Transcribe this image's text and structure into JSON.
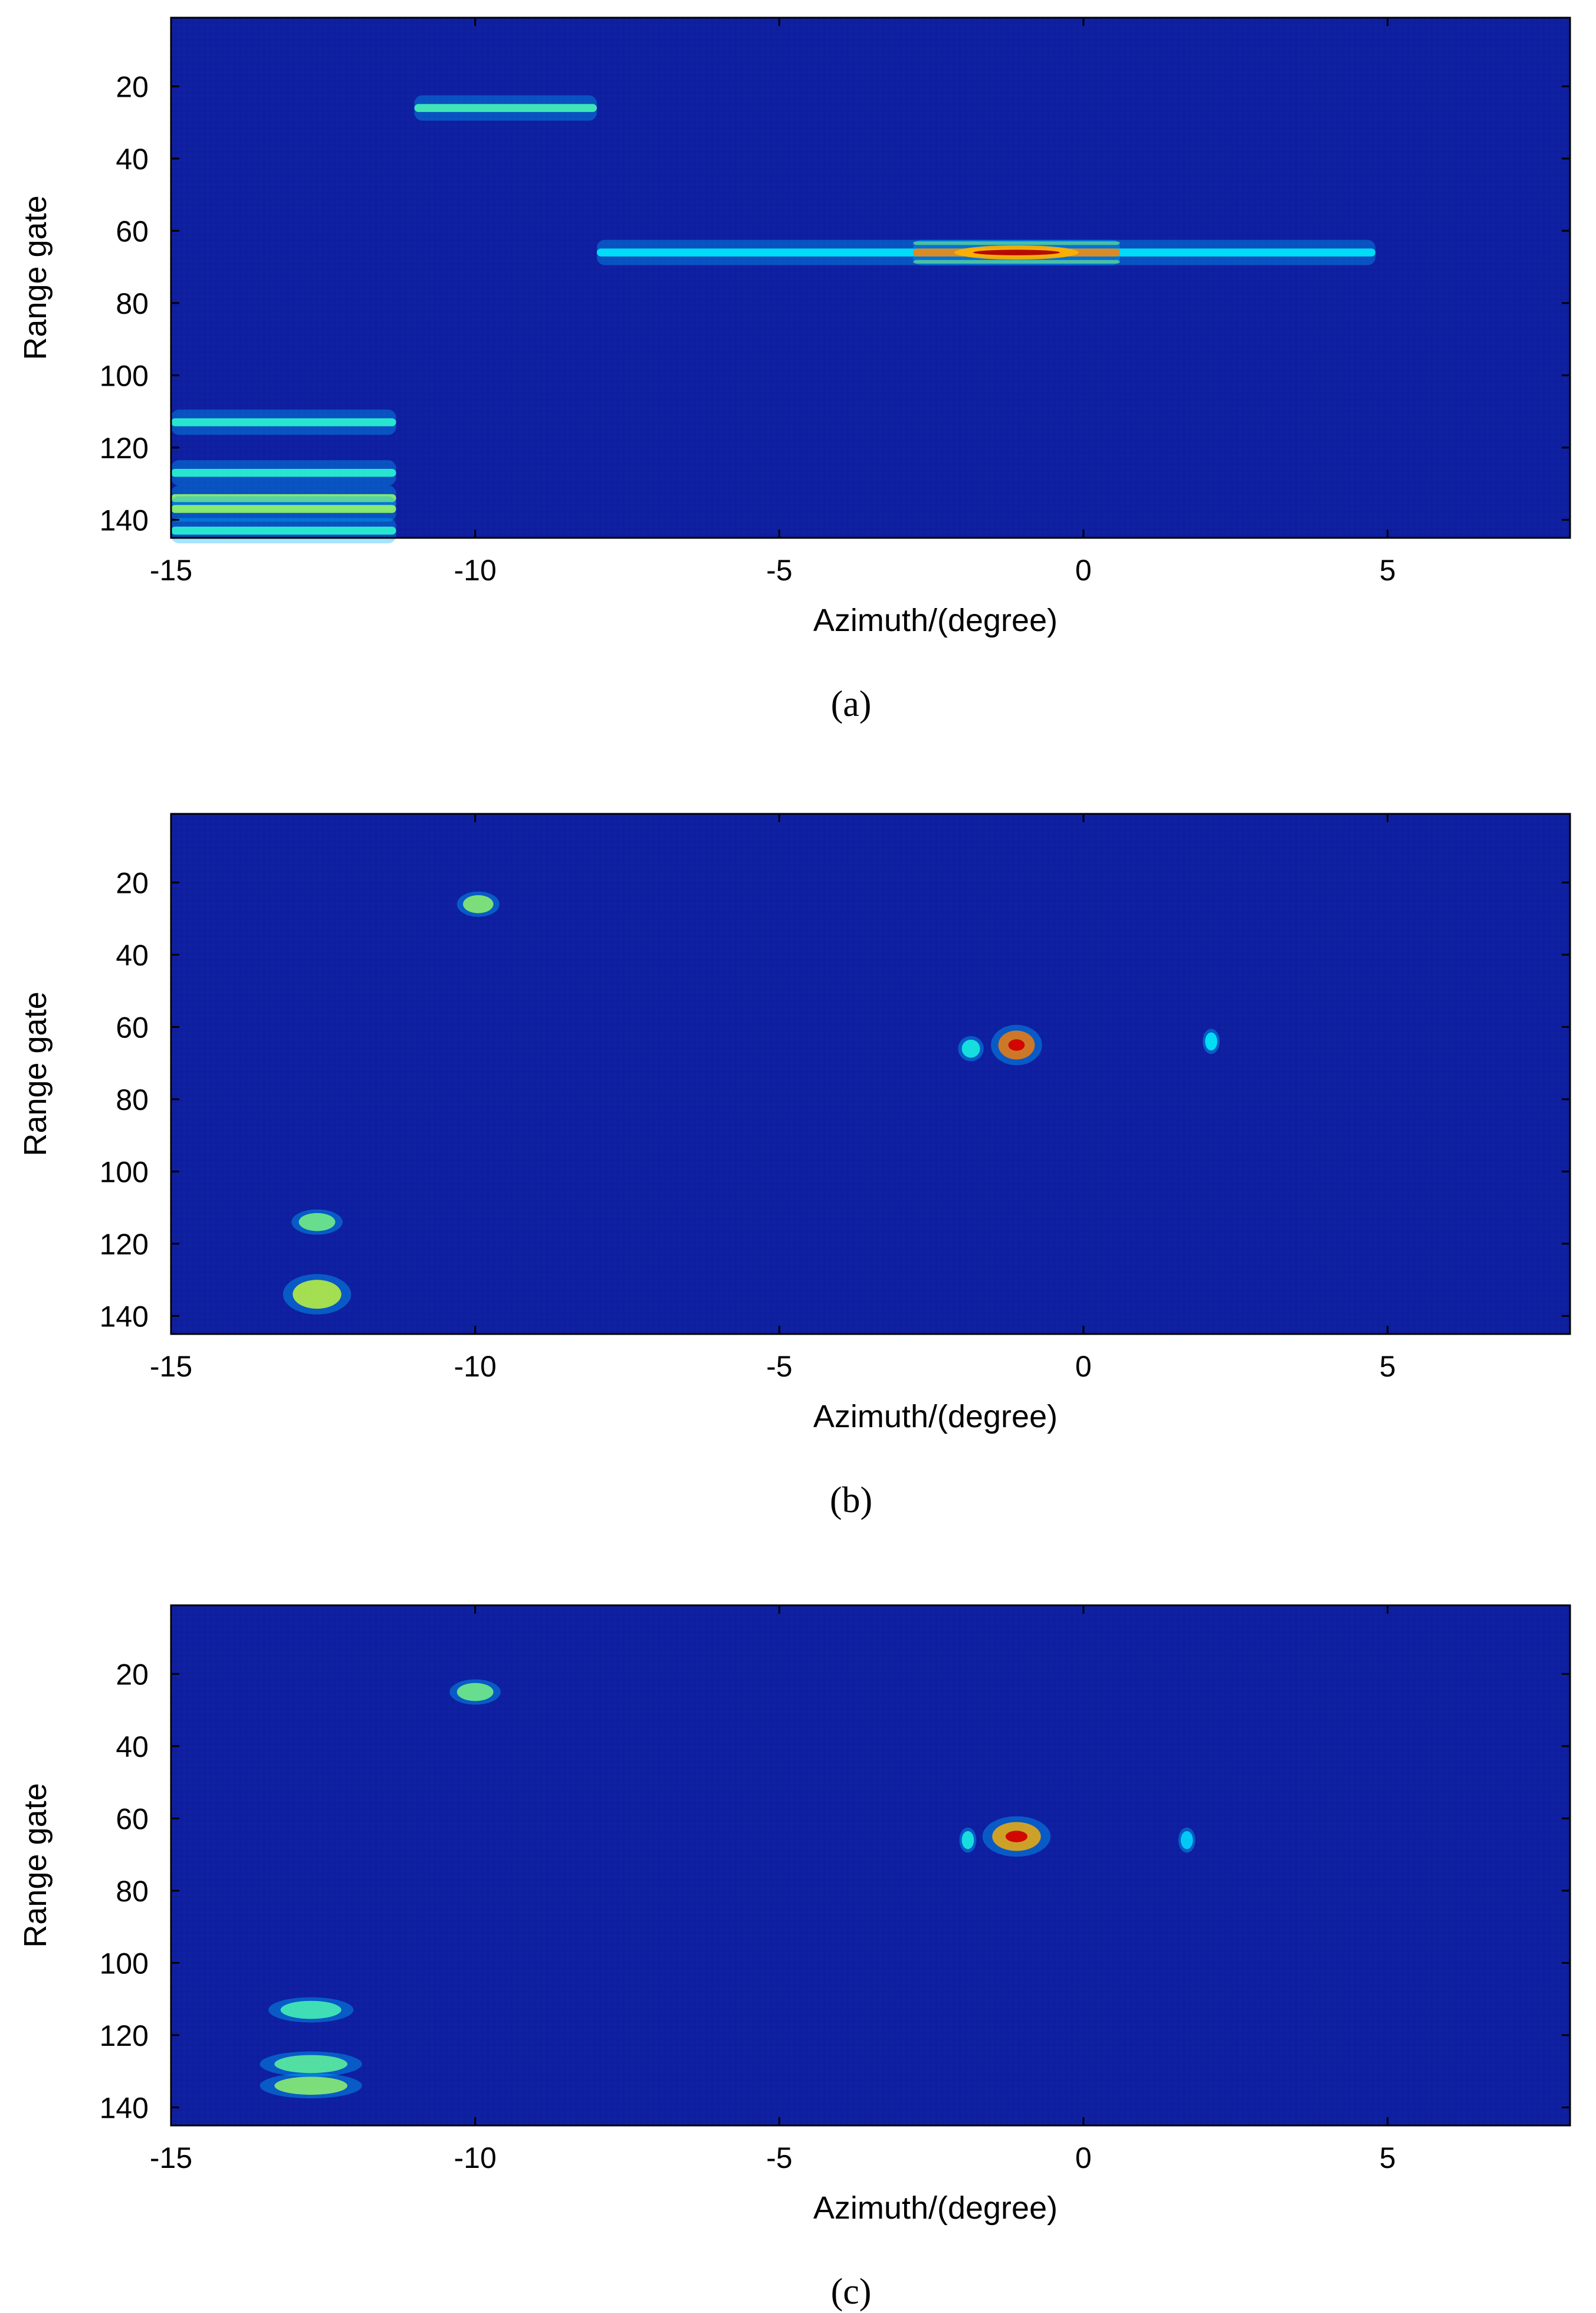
{
  "chart_data": [
    {
      "type": "heatmap",
      "caption": "(a)",
      "xlabel": "Azimuth/(degree)",
      "ylabel": "Range gate",
      "xlim": [
        -15,
        8
      ],
      "ylim": [
        145,
        1
      ],
      "xticks": [
        -15,
        -10,
        -5,
        0,
        5
      ],
      "yticks": [
        20,
        40,
        60,
        80,
        100,
        120,
        140
      ],
      "colormap": "jet",
      "background_color": "#0e1fa0",
      "features": [
        {
          "az_min": -11.0,
          "az_max": -8.0,
          "range_gate": 26,
          "intensity": 0.45,
          "kind": "streak"
        },
        {
          "az_min": -8.0,
          "az_max": 4.8,
          "range_gate": 66,
          "intensity": 0.3,
          "kind": "streak"
        },
        {
          "az_min": -2.8,
          "az_max": 0.6,
          "range_gate": 66,
          "intensity": 1.0,
          "kind": "streak"
        },
        {
          "az_min": -15.0,
          "az_max": -11.3,
          "range_gate": 113,
          "intensity": 0.4,
          "kind": "streak"
        },
        {
          "az_min": -15.0,
          "az_max": -11.3,
          "range_gate": 127,
          "intensity": 0.4,
          "kind": "streak"
        },
        {
          "az_min": -15.0,
          "az_max": -11.3,
          "range_gate": 134,
          "intensity": 0.6,
          "kind": "streak"
        },
        {
          "az_min": -15.0,
          "az_max": -11.3,
          "range_gate": 137,
          "intensity": 0.6,
          "kind": "streak"
        },
        {
          "az_min": -15.0,
          "az_max": -11.3,
          "range_gate": 143,
          "intensity": 0.4,
          "kind": "streak"
        }
      ]
    },
    {
      "type": "heatmap",
      "caption": "(b)",
      "xlabel": "Azimuth/(degree)",
      "ylabel": "Range gate",
      "xlim": [
        -15,
        8
      ],
      "ylim": [
        145,
        1
      ],
      "xticks": [
        -15,
        -10,
        -5,
        0,
        5
      ],
      "yticks": [
        20,
        40,
        60,
        80,
        100,
        120,
        140
      ],
      "colormap": "jet",
      "background_color": "#0e1fa0",
      "features": [
        {
          "az_min": -10.2,
          "az_max": -9.7,
          "range_gate": 26,
          "intensity": 0.55,
          "kind": "spot"
        },
        {
          "az_min": -1.4,
          "az_max": -0.8,
          "range_gate": 65,
          "intensity": 1.0,
          "kind": "spot"
        },
        {
          "az_min": -2.0,
          "az_max": -1.7,
          "range_gate": 66,
          "intensity": 0.3,
          "kind": "spot"
        },
        {
          "az_min": 2.0,
          "az_max": 2.2,
          "range_gate": 64,
          "intensity": 0.25,
          "kind": "spot"
        },
        {
          "az_min": -12.9,
          "az_max": -12.3,
          "range_gate": 114,
          "intensity": 0.5,
          "kind": "spot"
        },
        {
          "az_min": -13.0,
          "az_max": -12.2,
          "range_gate": 134,
          "intensity": 0.65,
          "kind": "spot"
        }
      ]
    },
    {
      "type": "heatmap",
      "caption": "(c)",
      "xlabel": "Azimuth/(degree)",
      "ylabel": "Range gate",
      "xlim": [
        -15,
        8
      ],
      "ylim": [
        145,
        1
      ],
      "xticks": [
        -15,
        -10,
        -5,
        0,
        5
      ],
      "yticks": [
        20,
        40,
        60,
        80,
        100,
        120,
        140
      ],
      "colormap": "jet",
      "background_color": "#0e1fa0",
      "features": [
        {
          "az_min": -10.3,
          "az_max": -9.7,
          "range_gate": 25,
          "intensity": 0.5,
          "kind": "spot"
        },
        {
          "az_min": -1.5,
          "az_max": -0.7,
          "range_gate": 65,
          "intensity": 0.9,
          "kind": "spot"
        },
        {
          "az_min": -2.0,
          "az_max": -1.8,
          "range_gate": 66,
          "intensity": 0.3,
          "kind": "spot"
        },
        {
          "az_min": 1.6,
          "az_max": 1.8,
          "range_gate": 66,
          "intensity": 0.2,
          "kind": "spot"
        },
        {
          "az_min": -13.2,
          "az_max": -12.2,
          "range_gate": 113,
          "intensity": 0.4,
          "kind": "spot"
        },
        {
          "az_min": -13.3,
          "az_max": -12.1,
          "range_gate": 128,
          "intensity": 0.45,
          "kind": "spot"
        },
        {
          "az_min": -13.3,
          "az_max": -12.1,
          "range_gate": 134,
          "intensity": 0.55,
          "kind": "spot"
        }
      ]
    }
  ]
}
